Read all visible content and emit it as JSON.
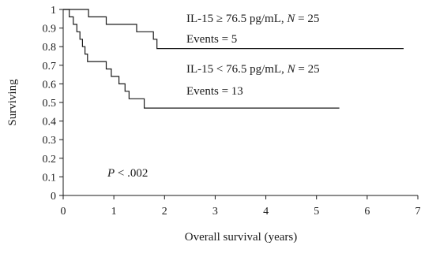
{
  "chart_data": {
    "type": "line",
    "subtype": "kaplan-meier step",
    "xlabel": "Overall survival (years)",
    "ylabel": "Surviving",
    "xlim": [
      0,
      7
    ],
    "ylim": [
      0,
      1
    ],
    "x_ticks": [
      "0",
      "1",
      "2",
      "3",
      "4",
      "5",
      "6",
      "7"
    ],
    "y_ticks": [
      "0",
      "0.1",
      "0.2",
      "0.3",
      "0.4",
      "0.5",
      "0.6",
      "0.7",
      "0.8",
      "0.9",
      "1"
    ],
    "grid": false,
    "series": [
      {
        "name": "IL-15 ≥ 76.5 pg/mL, N = 25",
        "events_label": "Events = 5",
        "color": "#1a1a1a",
        "points": [
          [
            0,
            1
          ],
          [
            0.5,
            1
          ],
          [
            0.5,
            0.96
          ],
          [
            0.85,
            0.96
          ],
          [
            0.85,
            0.92
          ],
          [
            1.45,
            0.92
          ],
          [
            1.45,
            0.88
          ],
          [
            1.78,
            0.88
          ],
          [
            1.78,
            0.84
          ],
          [
            1.85,
            0.84
          ],
          [
            1.85,
            0.79
          ],
          [
            6.72,
            0.79
          ]
        ]
      },
      {
        "name": "IL-15 < 76.5 pg/mL, N = 25",
        "events_label": "Events = 13",
        "color": "#1a1a1a",
        "points": [
          [
            0,
            1
          ],
          [
            0.12,
            1
          ],
          [
            0.12,
            0.96
          ],
          [
            0.2,
            0.96
          ],
          [
            0.2,
            0.92
          ],
          [
            0.27,
            0.92
          ],
          [
            0.27,
            0.88
          ],
          [
            0.33,
            0.88
          ],
          [
            0.33,
            0.84
          ],
          [
            0.38,
            0.84
          ],
          [
            0.38,
            0.8
          ],
          [
            0.43,
            0.8
          ],
          [
            0.43,
            0.76
          ],
          [
            0.48,
            0.76
          ],
          [
            0.48,
            0.72
          ],
          [
            0.85,
            0.72
          ],
          [
            0.85,
            0.68
          ],
          [
            0.95,
            0.68
          ],
          [
            0.95,
            0.64
          ],
          [
            1.1,
            0.64
          ],
          [
            1.1,
            0.6
          ],
          [
            1.22,
            0.6
          ],
          [
            1.22,
            0.56
          ],
          [
            1.3,
            0.56
          ],
          [
            1.3,
            0.52
          ],
          [
            1.6,
            0.52
          ],
          [
            1.6,
            0.47
          ],
          [
            5.45,
            0.47
          ]
        ]
      }
    ],
    "annotations": [
      {
        "text_prefix": "IL-15 ≥ 76.5 pg/mL, ",
        "n_var": "N",
        "text_suffix": " = 25"
      },
      {
        "text": "Events = 5"
      },
      {
        "text_prefix": "IL-15 < 76.5 pg/mL, ",
        "n_var": "N",
        "text_suffix": " = 25"
      },
      {
        "text": "Events = 13"
      },
      {
        "p_var": "P",
        "text_suffix": " < .002"
      }
    ]
  }
}
